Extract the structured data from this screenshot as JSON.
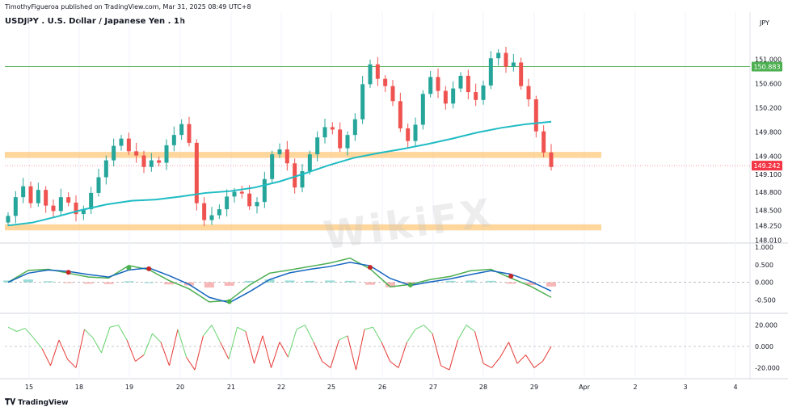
{
  "header": {
    "published": "TimothyFigueroa published on TradingView.com, Mar 31, 2025 08:49 UTC+8",
    "symbol": "USDJPY . U.S. Dollar / Japanese Yen . 1h",
    "pair_code": "JPY"
  },
  "watermark": "WikiFX",
  "footer": {
    "brand": "TradingView",
    "logo_icon": "tradingview-logo-icon"
  },
  "colors": {
    "up": "#26a69a",
    "down": "#ef5350",
    "ma": "#1fbcc4",
    "resistance": "#4caf50",
    "zone": "#ffb74d",
    "price_badge": "#f23645",
    "level_badge": "#4caf50"
  },
  "chart_data": [
    {
      "type": "candlestick",
      "price_axis": {
        "ticks": [
          "151.000",
          "150.600",
          "150.200",
          "149.800",
          "149.400",
          "149.100",
          "148.800",
          "148.500",
          "148.250",
          "148.010"
        ],
        "ylim": [
          148.0,
          151.25
        ]
      },
      "badges": [
        {
          "label": "150.883",
          "value": 150.883,
          "color": "#4caf50"
        },
        {
          "label": "149.242",
          "value": 149.242,
          "color": "#f23645"
        }
      ],
      "x_axis": {
        "ticks": [
          "15",
          "18",
          "19",
          "20",
          "21",
          "22",
          "25",
          "26",
          "27",
          "28",
          "29",
          "Apr",
          "2",
          "3",
          "4"
        ]
      },
      "resistance_line": 150.883,
      "zones": [
        [
          149.37,
          149.47
        ],
        [
          148.17,
          148.27
        ]
      ],
      "candles_closes": [
        148.41,
        148.72,
        148.9,
        148.62,
        148.84,
        148.58,
        148.49,
        148.72,
        148.63,
        148.44,
        148.52,
        148.79,
        149.05,
        149.33,
        149.57,
        149.69,
        149.48,
        149.41,
        149.22,
        149.33,
        149.29,
        149.58,
        149.75,
        149.93,
        149.62,
        148.62,
        148.34,
        148.42,
        148.52,
        148.73,
        148.81,
        148.78,
        148.57,
        148.64,
        149.02,
        149.43,
        149.51,
        149.28,
        148.88,
        149.15,
        149.43,
        149.71,
        149.88,
        149.84,
        149.53,
        149.75,
        150.01,
        150.59,
        150.92,
        150.68,
        150.56,
        150.31,
        149.86,
        149.65,
        149.92,
        150.43,
        150.71,
        150.48,
        150.27,
        150.52,
        150.73,
        150.46,
        150.33,
        150.57,
        151.02,
        151.11,
        150.88,
        150.95,
        150.56,
        150.34,
        149.81,
        149.46,
        149.22
      ],
      "ma_points": [
        148.25,
        148.3,
        148.4,
        148.51,
        148.6,
        148.66,
        148.68,
        148.73,
        148.79,
        148.82,
        148.88,
        148.98,
        149.11,
        149.25,
        149.37,
        149.45,
        149.52,
        149.6,
        149.69,
        149.79,
        149.87,
        149.93,
        149.97
      ]
    },
    {
      "type": "line",
      "name": "",
      "y_axis": {
        "ticks": [
          "1.000",
          "0.500",
          "0.000",
          "-0.500"
        ],
        "ylim": [
          -0.7,
          1.05
        ]
      },
      "series": [
        {
          "values": [
            0.0,
            0.34,
            0.37,
            0.26,
            0.15,
            0.12,
            0.48,
            0.36,
            0.05,
            -0.19,
            -0.56,
            -0.52,
            -0.08,
            0.26,
            0.35,
            0.45,
            0.55,
            0.69,
            0.38,
            -0.13,
            -0.06,
            0.08,
            0.17,
            0.33,
            0.37,
            0.12,
            -0.12,
            -0.43
          ],
          "color": "#4caf50"
        },
        {
          "values": [
            0.0,
            0.26,
            0.35,
            0.31,
            0.22,
            0.15,
            0.35,
            0.41,
            0.19,
            -0.06,
            -0.43,
            -0.58,
            -0.27,
            0.08,
            0.27,
            0.37,
            0.45,
            0.57,
            0.47,
            0.11,
            -0.09,
            0.01,
            0.1,
            0.22,
            0.33,
            0.23,
            0.02,
            -0.25
          ],
          "color": "#1565c0"
        }
      ],
      "histogram": [
        0.05,
        0.08,
        0.03,
        -0.02,
        -0.04,
        -0.05,
        0.03,
        0.0,
        -0.06,
        -0.09,
        -0.15,
        -0.1,
        0.04,
        0.08,
        0.05,
        0.04,
        0.05,
        0.04,
        -0.07,
        -0.14,
        -0.08,
        0.03,
        0.04,
        0.05,
        0.04,
        -0.04,
        -0.08,
        -0.12
      ]
    },
    {
      "type": "line",
      "name": "",
      "y_axis": {
        "ticks": [
          "20.000",
          "0.000",
          "-20.000"
        ],
        "ylim": [
          -28,
          28
        ]
      },
      "values": [
        18,
        14,
        17,
        8,
        -2,
        -18,
        6,
        -12,
        -20,
        16,
        8,
        -6,
        18,
        20,
        6,
        -14,
        -8,
        12,
        4,
        -18,
        16,
        -10,
        -22,
        10,
        20,
        4,
        -12,
        18,
        14,
        -16,
        10,
        -20,
        4,
        -10,
        16,
        20,
        4,
        -14,
        -20,
        6,
        10,
        -22,
        16,
        18,
        4,
        -14,
        -20,
        4,
        16,
        20,
        12,
        -18,
        -22,
        6,
        20,
        14,
        -16,
        -20,
        -10,
        4,
        -16,
        -8,
        -20,
        -14,
        0
      ]
    }
  ]
}
